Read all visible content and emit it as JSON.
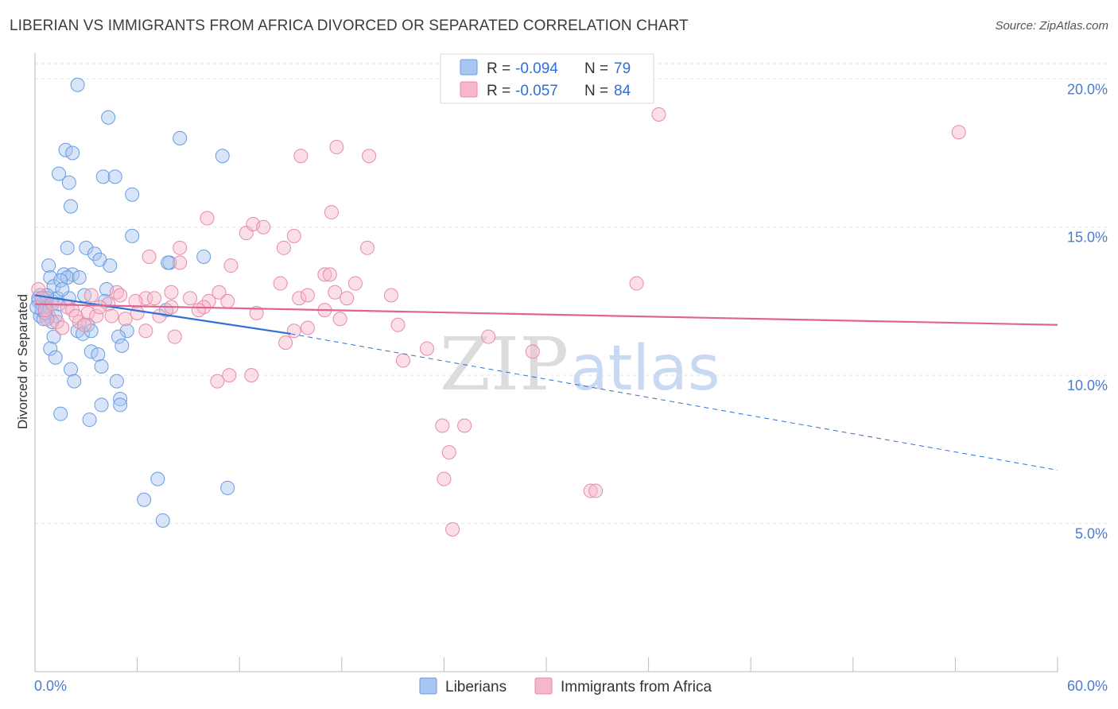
{
  "chart_data": {
    "type": "scatter",
    "title": "LIBERIAN VS IMMIGRANTS FROM AFRICA DIVORCED OR SEPARATED CORRELATION CHART",
    "source": "Source: ZipAtlas.com",
    "ylabel": "Divorced or Separated",
    "xlim": [
      0,
      60
    ],
    "ylim": [
      0,
      21
    ],
    "x_tick_labels": [
      "0.0%",
      "60.0%"
    ],
    "y_ticks": [
      5,
      10,
      15,
      20
    ],
    "y_tick_labels": [
      "5.0%",
      "10.0%",
      "15.0%",
      "20.0%"
    ],
    "grid": true,
    "legend_position": "top-center",
    "watermark": {
      "zip": "ZIP",
      "atlas": "atlas"
    },
    "colors": {
      "liberians_fill": "#a9c6f0",
      "liberians_stroke": "#6a9be0",
      "liberians_line": "#2f6fd6",
      "africa_fill": "#f7b7ca",
      "africa_stroke": "#e88aa8",
      "africa_line": "#e0648c",
      "grid": "#e3e3e3",
      "axis_label": "#4a7bd0"
    },
    "stats": [
      {
        "r_label": "R =",
        "r": "-0.094",
        "n_label": "N =",
        "n": "79"
      },
      {
        "r_label": "R =",
        "r": "-0.057",
        "n_label": "N =",
        "n": "84"
      }
    ],
    "series": [
      {
        "name": "Liberians",
        "trend": {
          "x0": 0,
          "y0": 12.7,
          "x1": 15,
          "y1": 11.4,
          "dash_to_x": 60,
          "dash_y": 6.8
        },
        "points": [
          [
            2.5,
            19.8
          ],
          [
            4.3,
            18.7
          ],
          [
            8.5,
            18.0
          ],
          [
            11,
            17.4
          ],
          [
            1.8,
            17.6
          ],
          [
            2.2,
            17.5
          ],
          [
            1.4,
            16.8
          ],
          [
            2.0,
            16.5
          ],
          [
            4.0,
            16.7
          ],
          [
            4.7,
            16.7
          ],
          [
            5.7,
            16.1
          ],
          [
            2.1,
            15.7
          ],
          [
            5.7,
            14.7
          ],
          [
            1.9,
            14.3
          ],
          [
            3.0,
            14.3
          ],
          [
            3.5,
            14.1
          ],
          [
            3.8,
            13.9
          ],
          [
            7.9,
            13.8
          ],
          [
            7.8,
            13.8
          ],
          [
            9.9,
            14.0
          ],
          [
            4.4,
            13.7
          ],
          [
            0.8,
            13.7
          ],
          [
            1.7,
            13.4
          ],
          [
            2.2,
            13.4
          ],
          [
            1.9,
            13.3
          ],
          [
            2.6,
            13.3
          ],
          [
            0.9,
            13.3
          ],
          [
            1.1,
            13.0
          ],
          [
            1.5,
            13.2
          ],
          [
            0.3,
            12.7
          ],
          [
            0.5,
            12.6
          ],
          [
            0.7,
            12.6
          ],
          [
            1.0,
            12.5
          ],
          [
            1.3,
            12.6
          ],
          [
            0.2,
            12.5
          ],
          [
            0.4,
            12.4
          ],
          [
            0.6,
            12.3
          ],
          [
            0.8,
            12.0
          ],
          [
            1.2,
            12.0
          ],
          [
            1.0,
            11.8
          ],
          [
            2.9,
            12.7
          ],
          [
            4.2,
            12.9
          ],
          [
            4.1,
            12.5
          ],
          [
            7.7,
            12.2
          ],
          [
            0.3,
            12.0
          ],
          [
            0.5,
            11.9
          ],
          [
            3.1,
            11.7
          ],
          [
            2.5,
            11.5
          ],
          [
            2.8,
            11.4
          ],
          [
            3.3,
            11.5
          ],
          [
            5.4,
            11.5
          ],
          [
            1.1,
            11.3
          ],
          [
            4.9,
            11.3
          ],
          [
            0.9,
            10.9
          ],
          [
            3.3,
            10.8
          ],
          [
            5.1,
            11.0
          ],
          [
            3.7,
            10.7
          ],
          [
            1.2,
            10.6
          ],
          [
            2.1,
            10.2
          ],
          [
            3.9,
            10.3
          ],
          [
            2.3,
            9.8
          ],
          [
            4.8,
            9.8
          ],
          [
            5.0,
            9.2
          ],
          [
            3.9,
            9.0
          ],
          [
            5.0,
            9.0
          ],
          [
            1.5,
            8.7
          ],
          [
            3.2,
            8.5
          ],
          [
            7.2,
            6.5
          ],
          [
            11.3,
            6.2
          ],
          [
            6.4,
            5.8
          ],
          [
            7.5,
            5.1
          ],
          [
            0.2,
            12.6
          ],
          [
            0.4,
            12.2
          ],
          [
            0.6,
            12.1
          ],
          [
            1.4,
            12.4
          ],
          [
            2.0,
            12.6
          ],
          [
            0.7,
            12.7
          ],
          [
            1.6,
            12.9
          ],
          [
            0.1,
            12.3
          ]
        ]
      },
      {
        "name": "Immigrants from Africa",
        "trend": {
          "x0": 0,
          "y0": 12.4,
          "x1": 60,
          "y1": 11.7
        },
        "points": [
          [
            36.6,
            18.8
          ],
          [
            54.2,
            18.2
          ],
          [
            15.6,
            17.4
          ],
          [
            17.7,
            17.7
          ],
          [
            19.6,
            17.4
          ],
          [
            10.1,
            15.3
          ],
          [
            12.4,
            14.8
          ],
          [
            12.8,
            15.1
          ],
          [
            13.4,
            15.0
          ],
          [
            17.4,
            15.5
          ],
          [
            15.2,
            14.7
          ],
          [
            14.6,
            14.3
          ],
          [
            19.5,
            14.3
          ],
          [
            8.5,
            14.3
          ],
          [
            6.7,
            14.0
          ],
          [
            8.5,
            13.8
          ],
          [
            11.5,
            13.7
          ],
          [
            17.0,
            13.4
          ],
          [
            17.3,
            13.4
          ],
          [
            14.4,
            13.1
          ],
          [
            18.8,
            13.1
          ],
          [
            35.3,
            13.1
          ],
          [
            8.0,
            12.8
          ],
          [
            10.8,
            12.8
          ],
          [
            11.3,
            12.5
          ],
          [
            15.5,
            12.6
          ],
          [
            16.0,
            12.7
          ],
          [
            17.6,
            12.8
          ],
          [
            18.3,
            12.6
          ],
          [
            20.9,
            12.7
          ],
          [
            4.8,
            12.8
          ],
          [
            6.5,
            12.6
          ],
          [
            9.1,
            12.6
          ],
          [
            10.2,
            12.5
          ],
          [
            3.3,
            12.7
          ],
          [
            4.3,
            12.4
          ],
          [
            5.9,
            12.5
          ],
          [
            8.0,
            12.3
          ],
          [
            9.9,
            12.3
          ],
          [
            13.0,
            12.1
          ],
          [
            17.0,
            12.2
          ],
          [
            3.1,
            12.1
          ],
          [
            3.6,
            12.0
          ],
          [
            4.5,
            12.0
          ],
          [
            5.3,
            11.9
          ],
          [
            7.3,
            12.0
          ],
          [
            9.6,
            12.2
          ],
          [
            17.9,
            11.9
          ],
          [
            21.3,
            11.7
          ],
          [
            16.0,
            11.6
          ],
          [
            2.6,
            11.8
          ],
          [
            2.9,
            11.7
          ],
          [
            1.3,
            11.8
          ],
          [
            0.7,
            11.9
          ],
          [
            0.6,
            12.2
          ],
          [
            1.9,
            12.3
          ],
          [
            6.5,
            11.5
          ],
          [
            15.2,
            11.5
          ],
          [
            8.2,
            11.3
          ],
          [
            14.7,
            11.1
          ],
          [
            26.6,
            11.3
          ],
          [
            23.0,
            10.9
          ],
          [
            29.2,
            10.8
          ],
          [
            21.6,
            10.5
          ],
          [
            11.4,
            10.0
          ],
          [
            12.7,
            10.0
          ],
          [
            10.7,
            9.8
          ],
          [
            23.9,
            8.3
          ],
          [
            25.2,
            8.3
          ],
          [
            24.3,
            7.4
          ],
          [
            24.0,
            6.5
          ],
          [
            32.6,
            6.1
          ],
          [
            32.9,
            6.1
          ],
          [
            24.5,
            4.8
          ],
          [
            0.2,
            12.9
          ],
          [
            0.4,
            12.6
          ],
          [
            1.0,
            12.4
          ],
          [
            2.2,
            12.2
          ],
          [
            3.8,
            12.3
          ],
          [
            5.0,
            12.7
          ],
          [
            6.0,
            12.1
          ],
          [
            7.0,
            12.6
          ],
          [
            1.6,
            11.6
          ],
          [
            2.4,
            12.0
          ]
        ]
      }
    ]
  }
}
